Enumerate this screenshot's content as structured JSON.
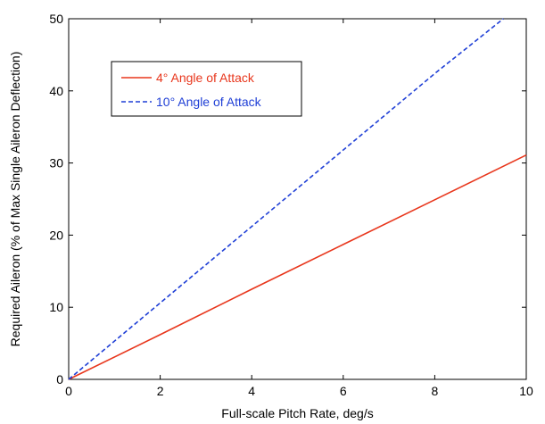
{
  "chart_data": {
    "type": "line",
    "title": "",
    "xlabel": "Full-scale Pitch Rate, deg/s",
    "ylabel": "Required Aileron (% of Max Single Aileron Deflection)",
    "xlim": [
      0,
      10
    ],
    "ylim": [
      0,
      50
    ],
    "xticks": [
      0,
      2,
      4,
      6,
      8,
      10
    ],
    "yticks": [
      0,
      10,
      20,
      30,
      40,
      50
    ],
    "grid": false,
    "legend_position": "top-left",
    "series": [
      {
        "name": "4° Angle of Attack",
        "color": "#e8361c",
        "style": "solid",
        "x": [
          0,
          2,
          4,
          6,
          8,
          10
        ],
        "y": [
          0,
          6.2,
          12.5,
          18.7,
          24.9,
          31.1
        ]
      },
      {
        "name": "10° Angle of Attack",
        "color": "#1f3fd6",
        "style": "dashed",
        "x": [
          0,
          2,
          4,
          6,
          8,
          9.5
        ],
        "y": [
          0,
          10.6,
          21.2,
          31.8,
          42.4,
          50
        ]
      }
    ]
  }
}
